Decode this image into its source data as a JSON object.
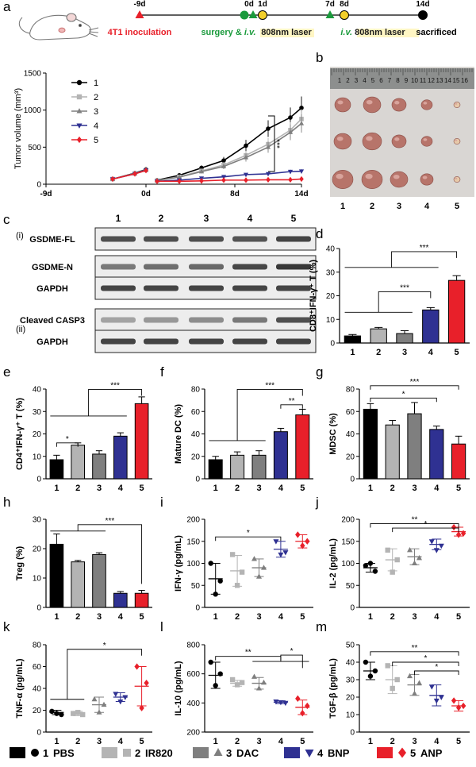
{
  "colors": {
    "black": "#000000",
    "light": "#b4b4b4",
    "mid": "#7f7f7f",
    "blue": "#2f3192",
    "red": "#e8202a",
    "green": "#1a9a3c",
    "yellow": "#f2cf2b"
  },
  "panel_letters": {
    "a": "a",
    "b": "b",
    "c": "c",
    "d": "d",
    "e": "e",
    "f": "f",
    "g": "g",
    "h": "h",
    "i": "i",
    "j": "j",
    "k": "k",
    "l": "l",
    "m": "m"
  },
  "timeline": {
    "events": [
      {
        "day": "-9d",
        "label": "4T1 inoculation",
        "marker": "triangle",
        "color": "red"
      },
      {
        "day": "0d",
        "label": "surgery & ",
        "label_italic": "i.v.",
        "marker": "circle-triangle",
        "color": "green"
      },
      {
        "day": "1d",
        "label": "808nm laser",
        "marker": "circle",
        "color": "yellow"
      },
      {
        "day": "7d",
        "label": "",
        "marker": "triangle",
        "color": "green"
      },
      {
        "day": "8d",
        "label_italic": "i.v.",
        "label": " 808nm laser",
        "marker": "circle",
        "color": "yellow"
      },
      {
        "day": "14d",
        "label": "sacrificed",
        "marker": "circle",
        "color": "black"
      }
    ]
  },
  "photo": {
    "ruler_numbers": [
      "1",
      "2",
      "3",
      "4",
      "5",
      "6",
      "7",
      "8",
      "9",
      "10",
      "11",
      "12",
      "13",
      "14",
      "15",
      "16"
    ],
    "group_labels": [
      "1",
      "2",
      "3",
      "4",
      "5"
    ]
  },
  "blot": {
    "sub_i": "(i)",
    "sub_ii": "(ii)",
    "lanes": [
      "1",
      "2",
      "3",
      "4",
      "5"
    ],
    "rows": [
      "GSDME-FL",
      "GSDME-N",
      "GAPDH",
      "Cleaved CASP3",
      "GAPDH"
    ]
  },
  "legend": [
    {
      "num": "1",
      "name": "PBS",
      "color": "black",
      "marker": "circle"
    },
    {
      "num": "2",
      "name": "IR820",
      "color": "light",
      "marker": "square"
    },
    {
      "num": "3",
      "name": "DAC",
      "color": "mid",
      "marker": "triangle"
    },
    {
      "num": "4",
      "name": "BNP",
      "color": "blue",
      "marker": "tri-down"
    },
    {
      "num": "5",
      "name": "ANP",
      "color": "red",
      "marker": "diamond"
    }
  ],
  "chart_data": [
    {
      "id": "a",
      "type": "line",
      "ylabel": "Tumor volume (mm³)",
      "ylim": [
        0,
        1500
      ],
      "yticks": [
        "0",
        "500",
        "1000",
        "1500"
      ],
      "xticks": [
        "-9d",
        "0d",
        "8d",
        "14d"
      ],
      "xtick_values": [
        -9,
        0,
        8,
        14
      ],
      "sig": "***",
      "x": [
        -3,
        -1,
        0,
        1,
        3,
        5,
        7,
        9,
        11,
        13,
        14
      ],
      "series": [
        {
          "name": "1",
          "values": [
            70,
            150,
            200,
            55,
            120,
            220,
            320,
            520,
            750,
            900,
            1030
          ]
        },
        {
          "name": "2",
          "values": [
            70,
            145,
            190,
            50,
            100,
            180,
            260,
            390,
            540,
            730,
            880
          ]
        },
        {
          "name": "3",
          "values": [
            70,
            145,
            195,
            50,
            95,
            170,
            240,
            360,
            500,
            700,
            820
          ]
        },
        {
          "name": "4",
          "values": [
            70,
            140,
            190,
            40,
            55,
            80,
            100,
            130,
            140,
            170,
            175
          ]
        },
        {
          "name": "5",
          "values": [
            70,
            140,
            185,
            40,
            40,
            45,
            55,
            55,
            60,
            60,
            70
          ]
        }
      ]
    },
    {
      "id": "d",
      "type": "bar",
      "ylabel": "CD8⁺IFN-γ⁺ T (%)",
      "categories": [
        "1",
        "2",
        "3",
        "4",
        "5"
      ],
      "values": [
        3.0,
        6.0,
        4.0,
        14.0,
        26.5
      ],
      "errors": [
        0.6,
        0.6,
        1.2,
        1.0,
        2.0
      ],
      "ylim": [
        0,
        40
      ],
      "yticks": [
        "0",
        "10",
        "20",
        "30",
        "40"
      ],
      "sig": [
        "***",
        "***"
      ]
    },
    {
      "id": "e",
      "type": "bar",
      "ylabel": "CD4⁺IFN-γ⁺ T (%)",
      "categories": [
        "1",
        "2",
        "3",
        "4",
        "5"
      ],
      "values": [
        8.5,
        15.0,
        11.0,
        19.0,
        33.5
      ],
      "errors": [
        2.0,
        1.0,
        1.5,
        1.5,
        3.0
      ],
      "ylim": [
        0,
        40
      ],
      "yticks": [
        "0",
        "10",
        "20",
        "30",
        "40"
      ],
      "sig": [
        "*",
        "***"
      ]
    },
    {
      "id": "f",
      "type": "bar",
      "ylabel": "Mature DC (%)",
      "categories": [
        "1",
        "2",
        "3",
        "4",
        "5"
      ],
      "values": [
        17.0,
        21.0,
        21.0,
        42.0,
        57.0
      ],
      "errors": [
        3.0,
        3.0,
        4.0,
        3.0,
        5.0
      ],
      "ylim": [
        0,
        80
      ],
      "yticks": [
        "0",
        "20",
        "40",
        "60",
        "80"
      ],
      "sig": [
        "***",
        "**"
      ]
    },
    {
      "id": "g",
      "type": "bar",
      "ylabel": "MDSC (%)",
      "categories": [
        "1",
        "2",
        "3",
        "4",
        "5"
      ],
      "values": [
        62.0,
        48.0,
        58.0,
        44.0,
        31.0
      ],
      "errors": [
        5.0,
        4.0,
        10.0,
        3.0,
        7.0
      ],
      "ylim": [
        0,
        80
      ],
      "yticks": [
        "0",
        "20",
        "40",
        "60",
        "80"
      ],
      "sig": [
        "***",
        "*"
      ]
    },
    {
      "id": "h",
      "type": "bar",
      "ylabel": "Treg (%)",
      "categories": [
        "1",
        "2",
        "3",
        "4",
        "5"
      ],
      "values": [
        21.5,
        15.5,
        18.0,
        4.8,
        4.8
      ],
      "errors": [
        3.5,
        0.5,
        0.6,
        0.6,
        1.0
      ],
      "ylim": [
        0,
        30
      ],
      "yticks": [
        "0",
        "10",
        "20",
        "30"
      ],
      "sig": [
        "***"
      ]
    },
    {
      "id": "i",
      "type": "scatter",
      "ylabel": "IFN-γ (pg/mL)",
      "categories": [
        "1",
        "2",
        "3",
        "4",
        "5"
      ],
      "points": [
        [
          100,
          60,
          30
        ],
        [
          120,
          80,
          50
        ],
        [
          110,
          90,
          70
        ],
        [
          150,
          125,
          120
        ],
        [
          165,
          150,
          140
        ]
      ],
      "means": [
        65,
        83,
        90,
        132,
        150
      ],
      "errors": [
        35,
        35,
        20,
        18,
        15
      ],
      "ylim": [
        0,
        200
      ],
      "yticks": [
        "0",
        "50",
        "100",
        "150",
        "200"
      ],
      "sig": [
        "*"
      ]
    },
    {
      "id": "j",
      "type": "scatter",
      "ylabel": "IL-2 (pg/mL)",
      "categories": [
        "1",
        "2",
        "3",
        "4",
        "5"
      ],
      "points": [
        [
          95,
          82,
          100
        ],
        [
          130,
          108,
          80
        ],
        [
          130,
          112,
          100
        ],
        [
          150,
          140,
          130
        ],
        [
          182,
          168,
          165
        ]
      ],
      "means": [
        90,
        108,
        115,
        143,
        172
      ],
      "errors": [
        10,
        25,
        18,
        12,
        10
      ],
      "ylim": [
        0,
        200
      ],
      "yticks": [
        "0",
        "50",
        "100",
        "150",
        "200"
      ],
      "sig": [
        "**",
        "*"
      ]
    },
    {
      "id": "k",
      "type": "scatter",
      "ylabel": "TNF-α (pg/mL)",
      "categories": [
        "1",
        "2",
        "3",
        "4",
        "5"
      ],
      "points": [
        [
          19,
          16,
          17
        ],
        [
          17,
          16,
          18
        ],
        [
          30,
          25,
          18
        ],
        [
          35,
          32,
          28
        ],
        [
          60,
          45,
          22
        ]
      ],
      "means": [
        18,
        17,
        25,
        32,
        42
      ],
      "errors": [
        2,
        2,
        7,
        4,
        18
      ],
      "ylim": [
        0,
        80
      ],
      "yticks": [
        "0",
        "20",
        "40",
        "60",
        "80"
      ],
      "sig": [
        "*"
      ]
    },
    {
      "id": "l",
      "type": "scatter",
      "ylabel": "IL-10 (pg/mL)",
      "categories": [
        "1",
        "2",
        "3",
        "4",
        "5"
      ],
      "points": [
        [
          680,
          600,
          520
        ],
        [
          560,
          540,
          525
        ],
        [
          580,
          540,
          500
        ],
        [
          410,
          400,
          405
        ],
        [
          430,
          380,
          330
        ]
      ],
      "means": [
        590,
        535,
        535,
        405,
        370
      ],
      "errors": [
        90,
        20,
        40,
        10,
        50
      ],
      "ylim": [
        200,
        800
      ],
      "yticks": [
        "200",
        "400",
        "600",
        "800"
      ],
      "sig": [
        "**",
        "*"
      ]
    },
    {
      "id": "m",
      "type": "scatter",
      "ylabel": "TGF-β (pg/mL)",
      "categories": [
        "1",
        "2",
        "3",
        "4",
        "5"
      ],
      "points": [
        [
          40,
          35,
          32
        ],
        [
          38,
          30,
          25
        ],
        [
          32,
          28,
          22
        ],
        [
          26,
          20,
          18
        ],
        [
          18,
          15,
          14
        ]
      ],
      "means": [
        35,
        30,
        27,
        21,
        15
      ],
      "errors": [
        5,
        8,
        6,
        6,
        3
      ],
      "ylim": [
        0,
        50
      ],
      "yticks": [
        "0",
        "10",
        "20",
        "30",
        "40",
        "50"
      ],
      "sig": [
        "**",
        "*",
        "*"
      ]
    }
  ]
}
